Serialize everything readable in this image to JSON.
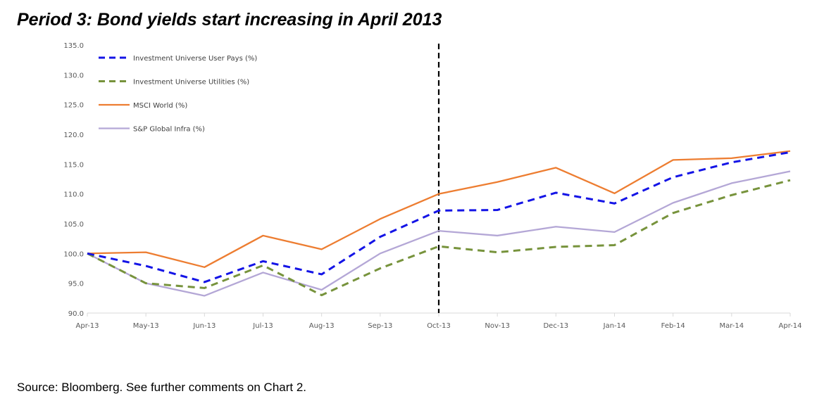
{
  "title": "Period 3: Bond yields start increasing in April 2013",
  "source": "Source: Bloomberg. See further comments on Chart 2.",
  "chart_data": {
    "type": "line",
    "title": "Period 3: Bond yields start increasing in April 2013",
    "xlabel": "",
    "ylabel": "",
    "ylim": [
      90,
      135
    ],
    "yticks": [
      "90.0",
      "95.0",
      "100.0",
      "105.0",
      "110.0",
      "115.0",
      "120.0",
      "125.0",
      "130.0",
      "135.0"
    ],
    "categories": [
      "Apr-13",
      "May-13",
      "Jun-13",
      "Jul-13",
      "Aug-13",
      "Sep-13",
      "Oct-13",
      "Nov-13",
      "Dec-13",
      "Jan-14",
      "Feb-14",
      "Mar-14",
      "Apr-14"
    ],
    "grid": false,
    "legend_position": "top-left",
    "annotation": {
      "type": "vertical-dashed-line",
      "at": "Oct-13"
    },
    "series": [
      {
        "name": "Investment Universe User Pays (%)",
        "color": "#1414e6",
        "style": "dashed",
        "values": [
          100,
          97.9,
          95.2,
          98.7,
          96.5,
          102.8,
          107.2,
          107.3,
          110.2,
          108.4,
          112.8,
          115.3,
          117.0
        ]
      },
      {
        "name": "Investment Universe Utilities (%)",
        "color": "#77933c",
        "style": "dashed",
        "values": [
          100,
          95.0,
          94.2,
          98.0,
          93.0,
          97.5,
          101.2,
          100.2,
          101.1,
          101.4,
          106.8,
          109.8,
          112.3
        ]
      },
      {
        "name": "MSCI World  (%)",
        "color": "#ed7d31",
        "style": "solid",
        "values": [
          100,
          100.2,
          97.7,
          103.0,
          100.7,
          105.8,
          110.0,
          112.0,
          114.4,
          110.1,
          115.7,
          116.0,
          117.2
        ]
      },
      {
        "name": "S&P Global Infra  (%)",
        "color": "#b4a7d6",
        "style": "solid",
        "values": [
          100,
          95.0,
          92.9,
          96.8,
          93.9,
          100.0,
          103.8,
          103.0,
          104.5,
          103.6,
          108.5,
          111.8,
          113.8
        ]
      }
    ]
  }
}
